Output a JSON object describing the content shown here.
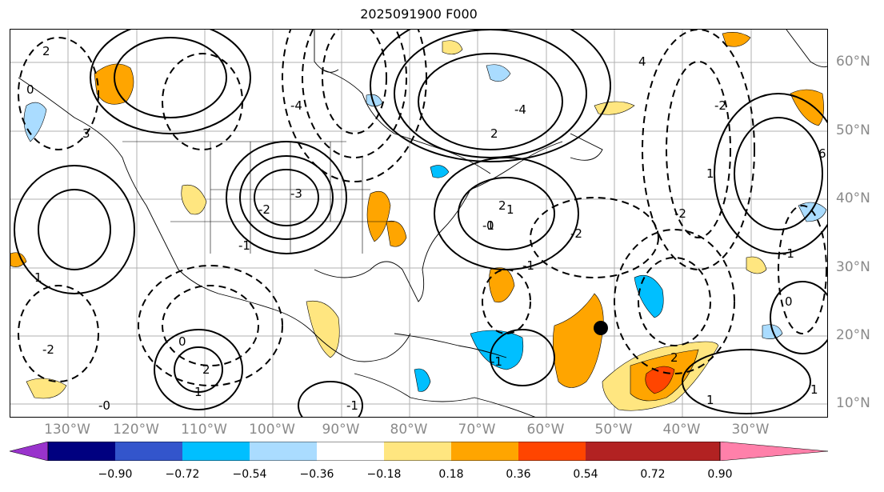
{
  "title": "2025091900 F000",
  "lon_labels": [
    "130°W",
    "120°W",
    "110°W",
    "100°W",
    "90°W",
    "80°W",
    "70°W",
    "60°W",
    "50°W",
    "40°W",
    "30°W"
  ],
  "lat_labels": [
    "60°N",
    "50°N",
    "40°N",
    "30°N",
    "20°N",
    "10°N"
  ],
  "colorbar": {
    "ticks": [
      "−0.90",
      "−0.72",
      "−0.54",
      "−0.36",
      "−0.18",
      "0.18",
      "0.36",
      "0.54",
      "0.72",
      "0.90"
    ],
    "colors": [
      "#9933cc",
      "#000080",
      "#3355cc",
      "#00bfff",
      "#aadcff",
      "#ffffff",
      "#ffe680",
      "#ffa500",
      "#ff4500",
      "#b22222",
      "#ff80aa"
    ]
  },
  "contour_labels": [
    "2",
    "-4",
    "0",
    "1",
    "-1",
    "3",
    "-2",
    "-3",
    "2",
    "-1",
    "1",
    "0",
    "-1",
    "2",
    "-4",
    "-2",
    "4",
    "6",
    "-2",
    "1",
    "-1",
    "0",
    "-2",
    "-1",
    "2",
    "1",
    "0",
    "-0",
    "1",
    "2",
    "-2",
    "-1",
    "1"
  ],
  "marker": {
    "label": "storm-center",
    "lon": -53.6,
    "lat": 21.2
  }
}
